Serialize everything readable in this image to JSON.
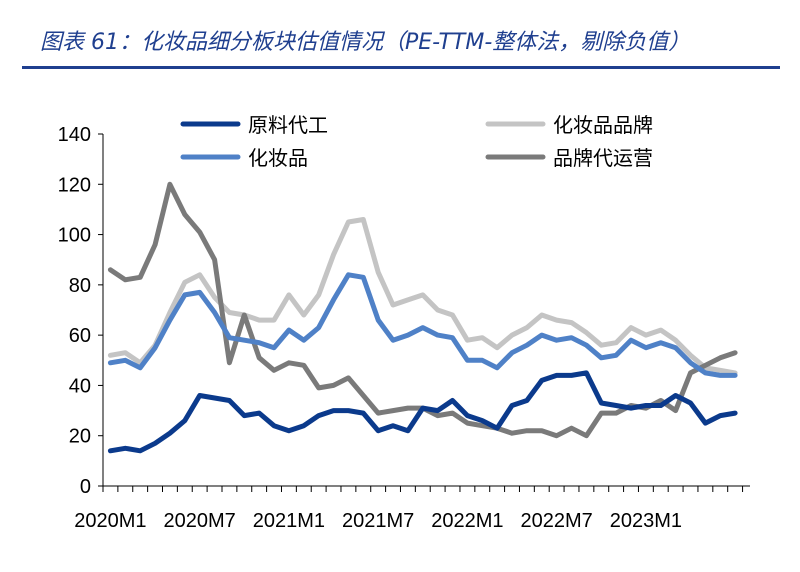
{
  "title": "图表 61：化妆品细分板块估值情况（PE-TTM-整体法，剔除负值）",
  "colors": {
    "title": "#1f3f8f",
    "rule": "#1f3f8f",
    "series": [
      "#0b3a8c",
      "#c4c4c4",
      "#4f81c7",
      "#7a7a7a"
    ]
  },
  "chart_data": {
    "type": "line",
    "title": "",
    "xlabel": "",
    "ylabel": "",
    "ylim": [
      0,
      140
    ],
    "yticks": [
      "0",
      "20",
      "40",
      "60",
      "80",
      "100",
      "120",
      "140"
    ],
    "xtick_labels": [
      "2020M1",
      "2020M7",
      "2021M1",
      "2021M7",
      "2022M1",
      "2022M7",
      "2023M1"
    ],
    "grid": false,
    "legend_position": "top",
    "x": [
      "2020M1",
      "2020M2",
      "2020M3",
      "2020M4",
      "2020M5",
      "2020M6",
      "2020M7",
      "2020M8",
      "2020M9",
      "2020M10",
      "2020M11",
      "2020M12",
      "2021M1",
      "2021M2",
      "2021M3",
      "2021M4",
      "2021M5",
      "2021M6",
      "2021M7",
      "2021M8",
      "2021M9",
      "2021M10",
      "2021M11",
      "2021M12",
      "2022M1",
      "2022M2",
      "2022M3",
      "2022M4",
      "2022M5",
      "2022M6",
      "2022M7",
      "2022M8",
      "2022M9",
      "2022M10",
      "2022M11",
      "2022M12",
      "2023M1",
      "2023M2",
      "2023M3",
      "2023M4",
      "2023M5",
      "2023M6",
      "2023M7"
    ],
    "series": [
      {
        "name": "原料代工",
        "values": [
          14,
          15,
          14,
          17,
          21,
          26,
          36,
          35,
          34,
          28,
          29,
          24,
          22,
          24,
          28,
          30,
          30,
          29,
          22,
          24,
          22,
          31,
          30,
          34,
          28,
          26,
          23,
          32,
          34,
          42,
          44,
          44,
          45,
          33,
          32,
          31,
          32,
          32,
          36,
          33,
          25,
          28,
          29
        ]
      },
      {
        "name": "化妆品品牌",
        "values": [
          52,
          53,
          49,
          56,
          69,
          81,
          84,
          75,
          69,
          68,
          66,
          66,
          76,
          68,
          76,
          92,
          105,
          106,
          85,
          72,
          74,
          76,
          70,
          68,
          58,
          59,
          55,
          60,
          63,
          68,
          66,
          65,
          61,
          56,
          57,
          63,
          60,
          62,
          58,
          52,
          47,
          46,
          45
        ]
      },
      {
        "name": "化妆品",
        "values": [
          49,
          50,
          47,
          55,
          66,
          76,
          77,
          69,
          59,
          58,
          57,
          55,
          62,
          58,
          63,
          74,
          84,
          83,
          66,
          58,
          60,
          63,
          60,
          59,
          50,
          50,
          47,
          53,
          56,
          60,
          58,
          59,
          56,
          51,
          52,
          58,
          55,
          57,
          55,
          49,
          45,
          44,
          44
        ]
      },
      {
        "name": "品牌代运营",
        "values": [
          86,
          82,
          83,
          96,
          120,
          108,
          101,
          90,
          49,
          68,
          51,
          46,
          49,
          48,
          39,
          40,
          43,
          36,
          29,
          30,
          31,
          31,
          28,
          29,
          25,
          24,
          23,
          21,
          22,
          22,
          20,
          23,
          20,
          29,
          29,
          32,
          31,
          34,
          30,
          45,
          48,
          51,
          53
        ]
      }
    ]
  }
}
